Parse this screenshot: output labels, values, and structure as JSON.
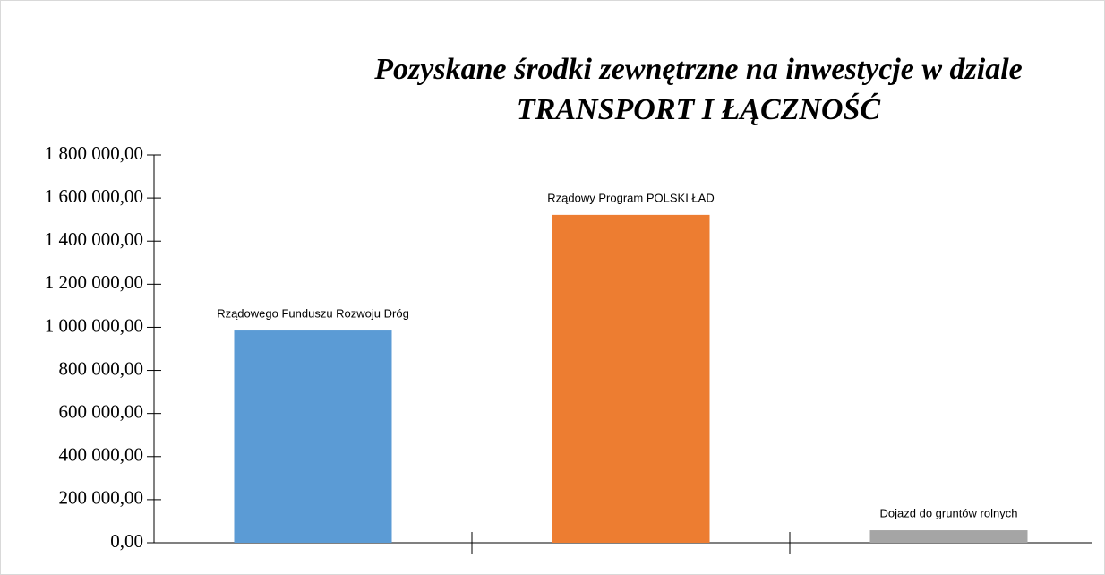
{
  "chart_data": {
    "type": "bar",
    "title": [
      "Pozyskane środki zewnętrzne na inwestycje w dziale",
      "TRANSPORT I ŁĄCZNOŚĆ"
    ],
    "categories": [
      "Rządowego Funduszu Rozwoju Dróg",
      "Rządowy Program POLSKI ŁAD",
      "Dojazd do gruntów rolnych"
    ],
    "values": [
      985000,
      1522000,
      58000
    ],
    "colors": [
      "#5b9bd5",
      "#ed7d31",
      "#a5a5a5"
    ],
    "ylim": [
      0,
      1800000
    ],
    "yticks": [
      {
        "value": 0,
        "label": "0,00"
      },
      {
        "value": 200000,
        "label": "200 000,00"
      },
      {
        "value": 400000,
        "label": "400 000,00"
      },
      {
        "value": 600000,
        "label": "600 000,00"
      },
      {
        "value": 800000,
        "label": "800 000,00"
      },
      {
        "value": 1000000,
        "label": "1 000 000,00"
      },
      {
        "value": 1200000,
        "label": "1 200 000,00"
      },
      {
        "value": 1400000,
        "label": "1 400 000,00"
      },
      {
        "value": 1600000,
        "label": "1 600 000,00"
      },
      {
        "value": 1800000,
        "label": "1 800 000,00"
      }
    ],
    "grid": false
  }
}
